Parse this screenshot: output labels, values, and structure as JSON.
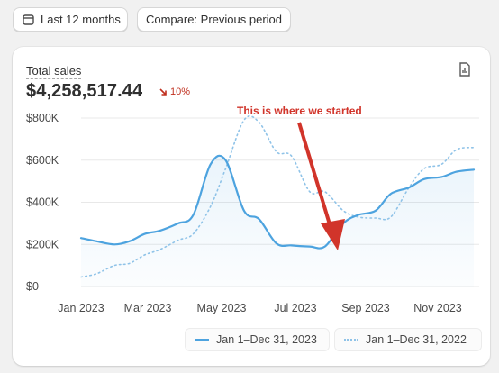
{
  "toolbar": {
    "date_range_label": "Last 12 months",
    "compare_label": "Compare: Previous period",
    "calendar_icon": "calendar-icon"
  },
  "card": {
    "metric_label": "Total sales",
    "metric_value": "$4,258,517.44",
    "delta_text": "10%",
    "delta_direction": "down",
    "delta_color": "#c0301f",
    "report_icon": "report-document-icon",
    "annotation_text": "This is where we started",
    "annotation_color": "#d1342a"
  },
  "chart_data": {
    "type": "line",
    "y_ticks": [
      "$800K",
      "$600K",
      "$400K",
      "$200K",
      "$0"
    ],
    "x_ticks": [
      "Jan 2023",
      "Mar 2023",
      "May 2023",
      "Jul 2023",
      "Sep 2023",
      "Nov 2023"
    ],
    "ylim": [
      0,
      800000
    ],
    "grid": true,
    "legend_position": "bottom-right",
    "series": [
      {
        "name": "Jan 1–Dec 31, 2023",
        "color": "#4da3df",
        "style": "solid",
        "x": [
          "2023-01-01",
          "2023-01-15",
          "2023-02-01",
          "2023-02-15",
          "2023-03-01",
          "2023-03-15",
          "2023-04-01",
          "2023-04-15",
          "2023-05-01",
          "2023-05-15",
          "2023-06-01",
          "2023-06-15",
          "2023-07-01",
          "2023-07-15",
          "2023-08-01",
          "2023-08-15",
          "2023-09-01",
          "2023-09-15",
          "2023-10-01",
          "2023-10-15",
          "2023-11-01",
          "2023-11-15",
          "2023-12-01",
          "2023-12-15",
          "2023-12-31"
        ],
        "values": [
          230000,
          215000,
          200000,
          215000,
          250000,
          265000,
          300000,
          340000,
          580000,
          600000,
          360000,
          320000,
          205000,
          195000,
          190000,
          190000,
          300000,
          340000,
          360000,
          440000,
          470000,
          510000,
          520000,
          545000,
          555000
        ]
      },
      {
        "name": "Jan 1–Dec 31, 2022",
        "color": "#8fc3e8",
        "style": "dotted",
        "x": [
          "2023-01-01",
          "2023-01-15",
          "2023-02-01",
          "2023-02-15",
          "2023-03-01",
          "2023-03-15",
          "2023-04-01",
          "2023-04-15",
          "2023-05-01",
          "2023-05-15",
          "2023-06-01",
          "2023-06-15",
          "2023-07-01",
          "2023-07-15",
          "2023-08-01",
          "2023-08-15",
          "2023-09-01",
          "2023-09-15",
          "2023-10-01",
          "2023-10-15",
          "2023-11-01",
          "2023-11-15",
          "2023-12-01",
          "2023-12-15",
          "2023-12-31"
        ],
        "values": [
          45000,
          60000,
          100000,
          110000,
          150000,
          175000,
          220000,
          250000,
          380000,
          560000,
          790000,
          780000,
          640000,
          620000,
          450000,
          450000,
          360000,
          330000,
          325000,
          330000,
          470000,
          560000,
          580000,
          650000,
          660000
        ]
      }
    ]
  }
}
